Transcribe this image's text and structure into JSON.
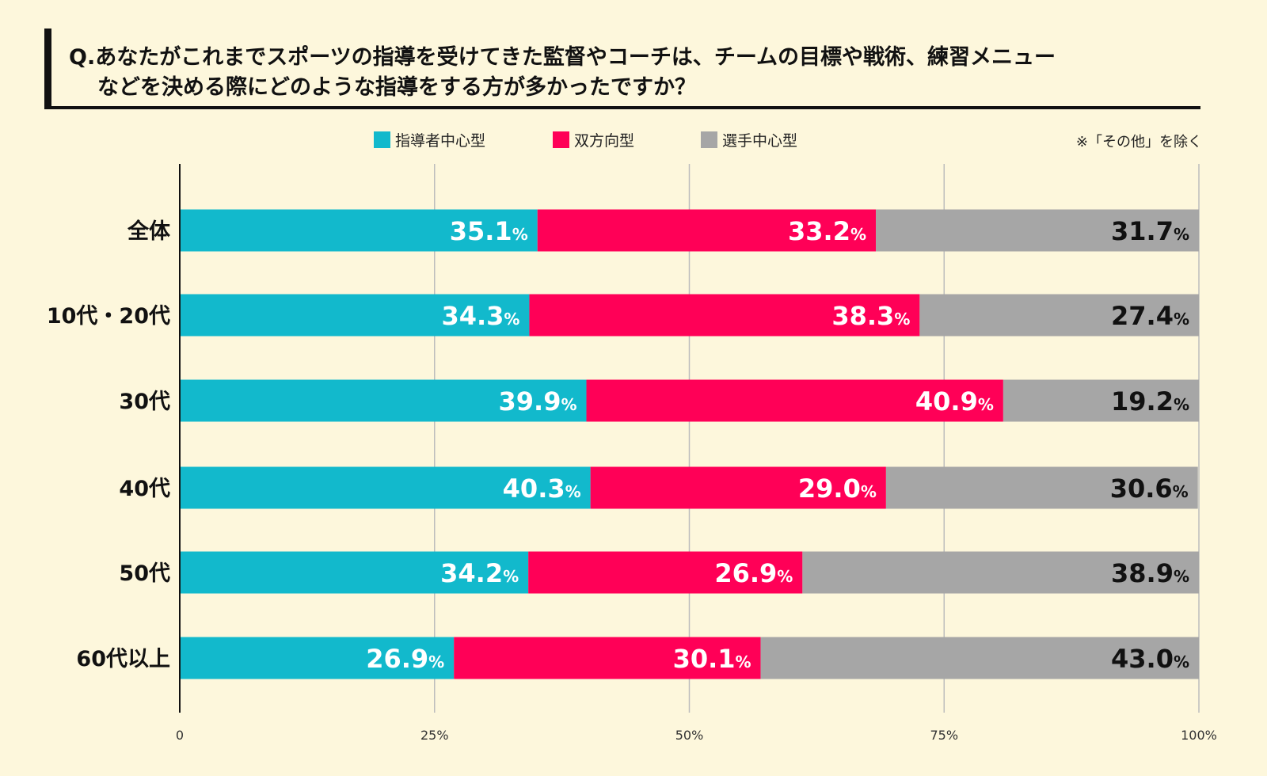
{
  "title": {
    "line1": "Q.あなたがこれまでスポーツの指導を受けてきた監督やコーチは、チームの目標や戦術、練習メニュー",
    "line2": "などを決める際にどのような指導をする方が多かったですか？"
  },
  "note": "※「その他」を除く",
  "chart_data": {
    "type": "bar",
    "orientation": "horizontal",
    "stacked": true,
    "categories": [
      "全体",
      "10代・20代",
      "30代",
      "40代",
      "50代",
      "60代以上"
    ],
    "series": [
      {
        "name": "指導者中心型",
        "color": "#12b9cc",
        "values": [
          35.1,
          34.3,
          39.9,
          40.3,
          34.2,
          26.9
        ]
      },
      {
        "name": "双方向型",
        "color": "#ff0057",
        "values": [
          33.2,
          38.3,
          40.9,
          29.0,
          26.9,
          30.1
        ]
      },
      {
        "name": "選手中心型",
        "color": "#a6a6a6",
        "values": [
          31.7,
          27.4,
          19.2,
          30.6,
          38.9,
          43.0
        ]
      }
    ],
    "xlim": [
      0,
      100
    ],
    "xticks": [
      "0",
      "25%",
      "50%",
      "75%",
      "100%"
    ],
    "tick_values": [
      0,
      25,
      50,
      75,
      100
    ],
    "value_suffix": "%",
    "grid": true,
    "legend": "top-center"
  }
}
